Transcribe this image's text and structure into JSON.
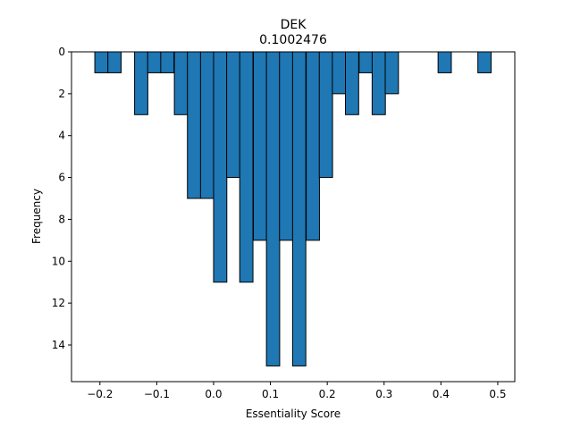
{
  "chart_data": {
    "type": "bar",
    "title": "DEK",
    "subtitle": "0.1002476",
    "xlabel": "Essentiality Score",
    "ylabel": "Frequency",
    "xlim": [
      -0.25,
      0.53
    ],
    "ylim": [
      0,
      15.75
    ],
    "y_inverted": true,
    "grid": false,
    "bar_color": "#1f77b4",
    "edge_color": "#000000",
    "bin_width": 0.0233,
    "xticks": [
      -0.2,
      -0.1,
      0.0,
      0.1,
      0.2,
      0.3,
      0.4,
      0.5
    ],
    "xtick_labels": [
      "−0.2",
      "−0.1",
      "0.0",
      "0.1",
      "0.2",
      "0.3",
      "0.4",
      "0.5"
    ],
    "yticks": [
      0,
      2,
      4,
      6,
      8,
      10,
      12,
      14
    ],
    "ytick_labels": [
      "0",
      "2",
      "4",
      "6",
      "8",
      "10",
      "12",
      "14"
    ],
    "bins": [
      {
        "x0": -0.209,
        "value": 1
      },
      {
        "x0": -0.186,
        "value": 1
      },
      {
        "x0": -0.139,
        "value": 3
      },
      {
        "x0": -0.116,
        "value": 1
      },
      {
        "x0": -0.093,
        "value": 1
      },
      {
        "x0": -0.069,
        "value": 3
      },
      {
        "x0": -0.046,
        "value": 7
      },
      {
        "x0": -0.023,
        "value": 7
      },
      {
        "x0": 0.0,
        "value": 11
      },
      {
        "x0": 0.023,
        "value": 6
      },
      {
        "x0": 0.046,
        "value": 11
      },
      {
        "x0": 0.07,
        "value": 9
      },
      {
        "x0": 0.093,
        "value": 15
      },
      {
        "x0": 0.116,
        "value": 9
      },
      {
        "x0": 0.139,
        "value": 15
      },
      {
        "x0": 0.163,
        "value": 9
      },
      {
        "x0": 0.186,
        "value": 6
      },
      {
        "x0": 0.209,
        "value": 2
      },
      {
        "x0": 0.232,
        "value": 3
      },
      {
        "x0": 0.256,
        "value": 1
      },
      {
        "x0": 0.279,
        "value": 3
      },
      {
        "x0": 0.302,
        "value": 2
      },
      {
        "x0": 0.395,
        "value": 1
      },
      {
        "x0": 0.465,
        "value": 1
      }
    ]
  }
}
